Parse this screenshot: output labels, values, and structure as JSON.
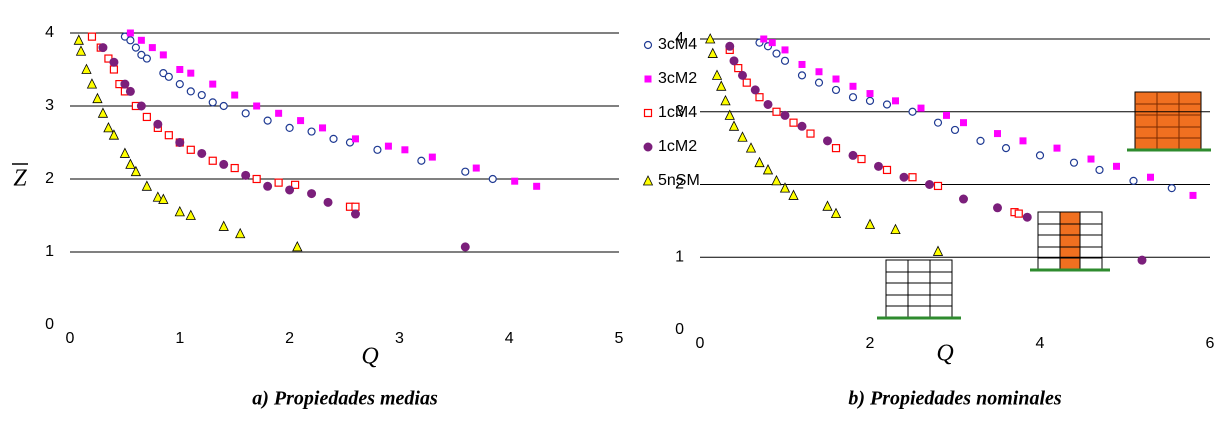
{
  "chart_data": [
    {
      "type": "scatter",
      "x_label": "Q",
      "y_label": "Z",
      "caption": "a)  Propiedades medias",
      "xlim": [
        0,
        5
      ],
      "ylim": [
        0,
        4
      ],
      "xticks": [
        0,
        1,
        2,
        3,
        4,
        5
      ],
      "yticks": [
        0,
        1,
        2,
        3,
        4
      ],
      "grid": true,
      "legend": "right",
      "series": [
        {
          "name": "3cM4",
          "color": "#1f3a93",
          "marker": "circle-open",
          "x": [
            0.5,
            0.55,
            0.6,
            0.65,
            0.7,
            0.85,
            0.9,
            1.0,
            1.1,
            1.2,
            1.3,
            1.4,
            1.6,
            1.8,
            2.0,
            2.2,
            2.4,
            2.55,
            2.8,
            3.2,
            3.6,
            3.85
          ],
          "values": [
            3.95,
            3.9,
            3.8,
            3.7,
            3.65,
            3.45,
            3.4,
            3.3,
            3.2,
            3.15,
            3.05,
            3.0,
            2.9,
            2.8,
            2.7,
            2.65,
            2.55,
            2.5,
            2.4,
            2.25,
            2.1,
            2.0
          ]
        },
        {
          "name": "3cM2",
          "color": "#ff00ff",
          "marker": "square",
          "x": [
            0.55,
            0.65,
            0.75,
            0.85,
            1.0,
            1.1,
            1.3,
            1.5,
            1.7,
            1.9,
            2.1,
            2.3,
            2.6,
            2.9,
            3.05,
            3.3,
            3.7,
            4.05,
            4.25
          ],
          "values": [
            4.0,
            3.9,
            3.8,
            3.7,
            3.5,
            3.45,
            3.3,
            3.15,
            3.0,
            2.9,
            2.8,
            2.7,
            2.55,
            2.45,
            2.4,
            2.3,
            2.15,
            1.97,
            1.9
          ]
        },
        {
          "name": "1cM4",
          "color": "#ff0000",
          "marker": "square-open",
          "x": [
            0.2,
            0.28,
            0.35,
            0.4,
            0.45,
            0.5,
            0.6,
            0.7,
            0.8,
            0.9,
            1.0,
            1.1,
            1.3,
            1.5,
            1.7,
            1.9,
            2.05,
            2.55,
            2.6
          ],
          "values": [
            3.95,
            3.8,
            3.65,
            3.5,
            3.3,
            3.2,
            3.0,
            2.85,
            2.7,
            2.6,
            2.5,
            2.4,
            2.25,
            2.15,
            2.0,
            1.95,
            1.92,
            1.62,
            1.62
          ]
        },
        {
          "name": "1cM2",
          "color": "#7b1f7b",
          "marker": "circle",
          "x": [
            0.3,
            0.4,
            0.5,
            0.55,
            0.65,
            0.8,
            1.0,
            1.2,
            1.4,
            1.6,
            1.8,
            2.0,
            2.2,
            2.35,
            2.6,
            3.6
          ],
          "values": [
            3.8,
            3.6,
            3.3,
            3.2,
            3.0,
            2.75,
            2.5,
            2.35,
            2.2,
            2.05,
            1.9,
            1.85,
            1.8,
            1.68,
            1.52,
            1.07
          ]
        },
        {
          "name": "5nSM",
          "color": "#ffff00",
          "marker": "triangle",
          "x": [
            0.08,
            0.1,
            0.15,
            0.2,
            0.25,
            0.3,
            0.35,
            0.4,
            0.5,
            0.55,
            0.6,
            0.7,
            0.8,
            0.85,
            1.0,
            1.1,
            1.4,
            1.55,
            2.07
          ],
          "values": [
            3.9,
            3.75,
            3.5,
            3.3,
            3.1,
            2.9,
            2.7,
            2.6,
            2.35,
            2.2,
            2.1,
            1.9,
            1.75,
            1.72,
            1.55,
            1.5,
            1.35,
            1.25,
            1.07
          ]
        }
      ]
    },
    {
      "type": "scatter",
      "x_label": "Q",
      "caption": "b) Propiedades nominales",
      "xlim": [
        0,
        6
      ],
      "ylim": [
        0,
        4
      ],
      "xticks": [
        0,
        2,
        4,
        6
      ],
      "yticks": [
        0,
        1,
        2,
        3,
        4
      ],
      "grid": true,
      "series": [
        {
          "color": "#1f3a93",
          "marker": "circle-open",
          "x": [
            0.7,
            0.8,
            0.9,
            1.0,
            1.2,
            1.4,
            1.6,
            1.8,
            2.0,
            2.2,
            2.5,
            2.8,
            3.0,
            3.3,
            3.6,
            4.0,
            4.4,
            4.7,
            5.1,
            5.55
          ],
          "values": [
            3.95,
            3.9,
            3.8,
            3.7,
            3.5,
            3.4,
            3.3,
            3.2,
            3.15,
            3.1,
            3.0,
            2.85,
            2.75,
            2.6,
            2.5,
            2.4,
            2.3,
            2.2,
            2.05,
            1.95
          ]
        },
        {
          "color": "#ff00ff",
          "marker": "square",
          "x": [
            0.75,
            0.85,
            1.0,
            1.2,
            1.4,
            1.6,
            1.8,
            2.0,
            2.3,
            2.6,
            2.9,
            3.1,
            3.5,
            3.8,
            4.2,
            4.6,
            4.9,
            5.3,
            5.8
          ],
          "values": [
            4.0,
            3.95,
            3.85,
            3.65,
            3.55,
            3.45,
            3.35,
            3.25,
            3.15,
            3.05,
            2.95,
            2.85,
            2.7,
            2.6,
            2.5,
            2.35,
            2.25,
            2.1,
            1.85
          ]
        },
        {
          "color": "#ff0000",
          "marker": "square-open",
          "x": [
            0.35,
            0.45,
            0.55,
            0.7,
            0.9,
            1.1,
            1.3,
            1.6,
            1.9,
            2.2,
            2.5,
            2.8,
            3.7,
            3.75
          ],
          "values": [
            3.85,
            3.6,
            3.4,
            3.2,
            3.0,
            2.85,
            2.7,
            2.5,
            2.35,
            2.2,
            2.1,
            1.98,
            1.62,
            1.6
          ]
        },
        {
          "color": "#7b1f7b",
          "marker": "circle",
          "x": [
            0.35,
            0.4,
            0.5,
            0.65,
            0.8,
            1.0,
            1.2,
            1.5,
            1.8,
            2.1,
            2.4,
            2.7,
            3.1,
            3.5,
            3.85,
            5.2
          ],
          "values": [
            3.9,
            3.7,
            3.5,
            3.3,
            3.1,
            2.95,
            2.8,
            2.6,
            2.4,
            2.25,
            2.1,
            2.0,
            1.8,
            1.68,
            1.55,
            0.96
          ]
        },
        {
          "color": "#ffff00",
          "marker": "triangle",
          "x": [
            0.12,
            0.15,
            0.2,
            0.25,
            0.3,
            0.35,
            0.4,
            0.5,
            0.6,
            0.7,
            0.8,
            0.9,
            1.0,
            1.1,
            1.5,
            1.6,
            2.0,
            2.3,
            2.8
          ],
          "values": [
            4.0,
            3.8,
            3.5,
            3.35,
            3.15,
            2.95,
            2.8,
            2.65,
            2.5,
            2.3,
            2.2,
            2.05,
            1.95,
            1.85,
            1.7,
            1.6,
            1.45,
            1.38,
            1.08
          ]
        }
      ]
    }
  ]
}
